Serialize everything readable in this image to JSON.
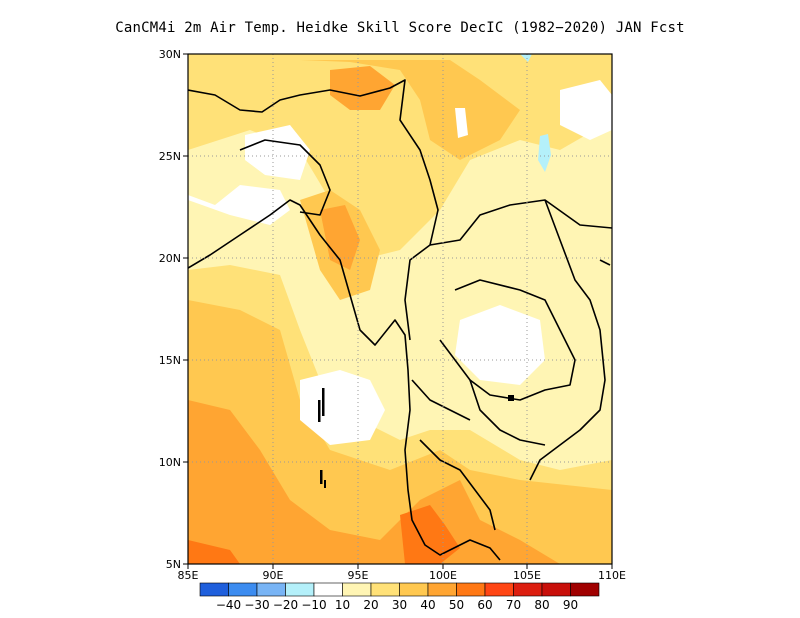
{
  "title": "CanCM4i  2m Air Temp. Heidke Skill Score DecIC (1982−2020) JAN Fcst",
  "chart_data": {
    "type": "heatmap",
    "x_ticks": [
      "85E",
      "90E",
      "95E",
      "100E",
      "105E",
      "110E"
    ],
    "y_ticks": [
      "5N",
      "10N",
      "15N",
      "20N",
      "25N",
      "30N"
    ],
    "xlim": [
      85,
      110
    ],
    "ylim": [
      5,
      30
    ],
    "grid": true,
    "colorbar": {
      "colors": [
        "#1f5fdc",
        "#3c8cf0",
        "#78b4f5",
        "#b4f0fa",
        "#ffffff",
        "#fff5b4",
        "#ffe178",
        "#ffc850",
        "#ffa532",
        "#ff7814",
        "#ff4614",
        "#dc1e0f",
        "#c80f0a",
        "#a00000"
      ],
      "labels": [
        "−40",
        "−30",
        "−20",
        "−10",
        "10",
        "20",
        "30",
        "40",
        "50",
        "60",
        "70",
        "80",
        "90"
      ]
    }
  }
}
